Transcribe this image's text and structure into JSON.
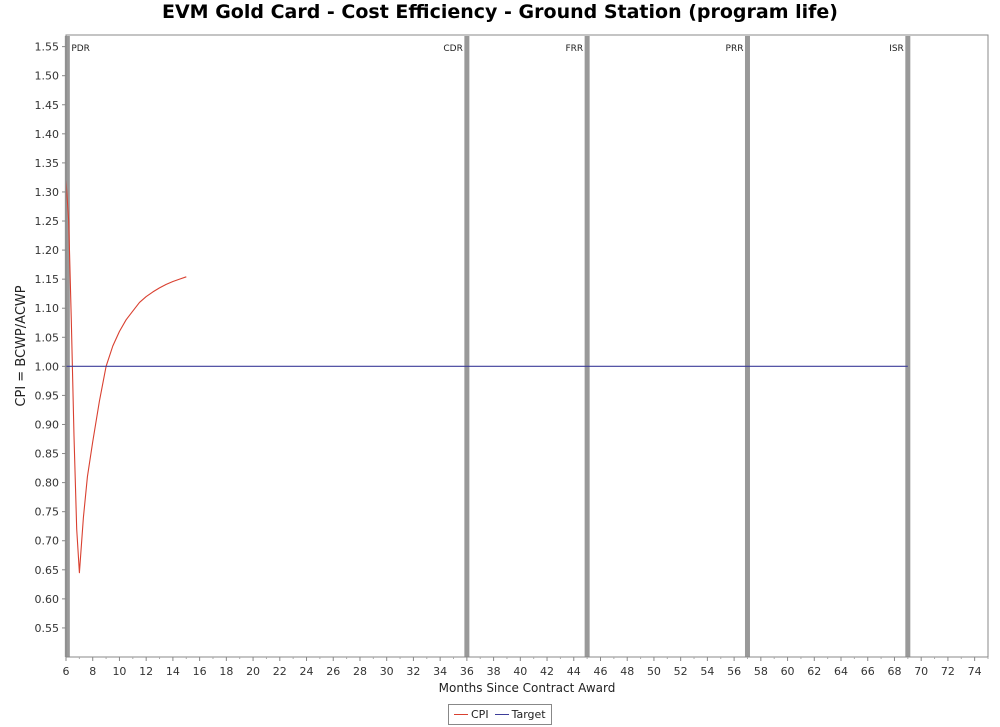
{
  "chart_data": {
    "type": "line",
    "title": "EVM Gold Card - Cost Efficiency - Ground Station (program life)",
    "xlabel": "Months Since Contract Award",
    "ylabel": "CPI = BCWP/ACWP",
    "xlim": [
      6,
      75
    ],
    "ylim": [
      0.5,
      1.57
    ],
    "xticks": [
      6,
      8,
      10,
      12,
      14,
      16,
      18,
      20,
      22,
      24,
      26,
      28,
      30,
      32,
      34,
      36,
      38,
      40,
      42,
      44,
      46,
      48,
      50,
      52,
      54,
      56,
      58,
      60,
      62,
      64,
      66,
      68,
      70,
      72,
      74
    ],
    "yticks": [
      0.55,
      0.6,
      0.65,
      0.7,
      0.75,
      0.8,
      0.85,
      0.9,
      0.95,
      1.0,
      1.05,
      1.1,
      1.15,
      1.2,
      1.25,
      1.3,
      1.35,
      1.4,
      1.45,
      1.5,
      1.55
    ],
    "grid": false,
    "legend": "bottom-center",
    "milestones": [
      {
        "label": "PDR",
        "x": 6.1
      },
      {
        "label": "CDR",
        "x": 36
      },
      {
        "label": "FRR",
        "x": 45
      },
      {
        "label": "PRR",
        "x": 57
      },
      {
        "label": "ISR",
        "x": 69
      }
    ],
    "series": [
      {
        "name": "CPI",
        "color": "#d94030",
        "x": [
          6.0,
          6.2,
          6.4,
          6.6,
          6.8,
          7.0,
          7.3,
          7.6,
          8.0,
          8.5,
          9.0,
          9.5,
          10.0,
          10.5,
          11.0,
          11.5,
          12.0,
          12.5,
          13.0,
          13.5,
          14.0,
          14.5,
          15.0
        ],
        "y": [
          1.32,
          1.25,
          1.08,
          0.88,
          0.72,
          0.645,
          0.74,
          0.81,
          0.87,
          0.94,
          1.0,
          1.035,
          1.06,
          1.08,
          1.095,
          1.11,
          1.12,
          1.128,
          1.135,
          1.141,
          1.146,
          1.15,
          1.154
        ]
      },
      {
        "name": "Target",
        "color": "#3d3d99",
        "x": [
          6.0,
          69.0
        ],
        "y": [
          1.0,
          1.0
        ]
      }
    ]
  }
}
